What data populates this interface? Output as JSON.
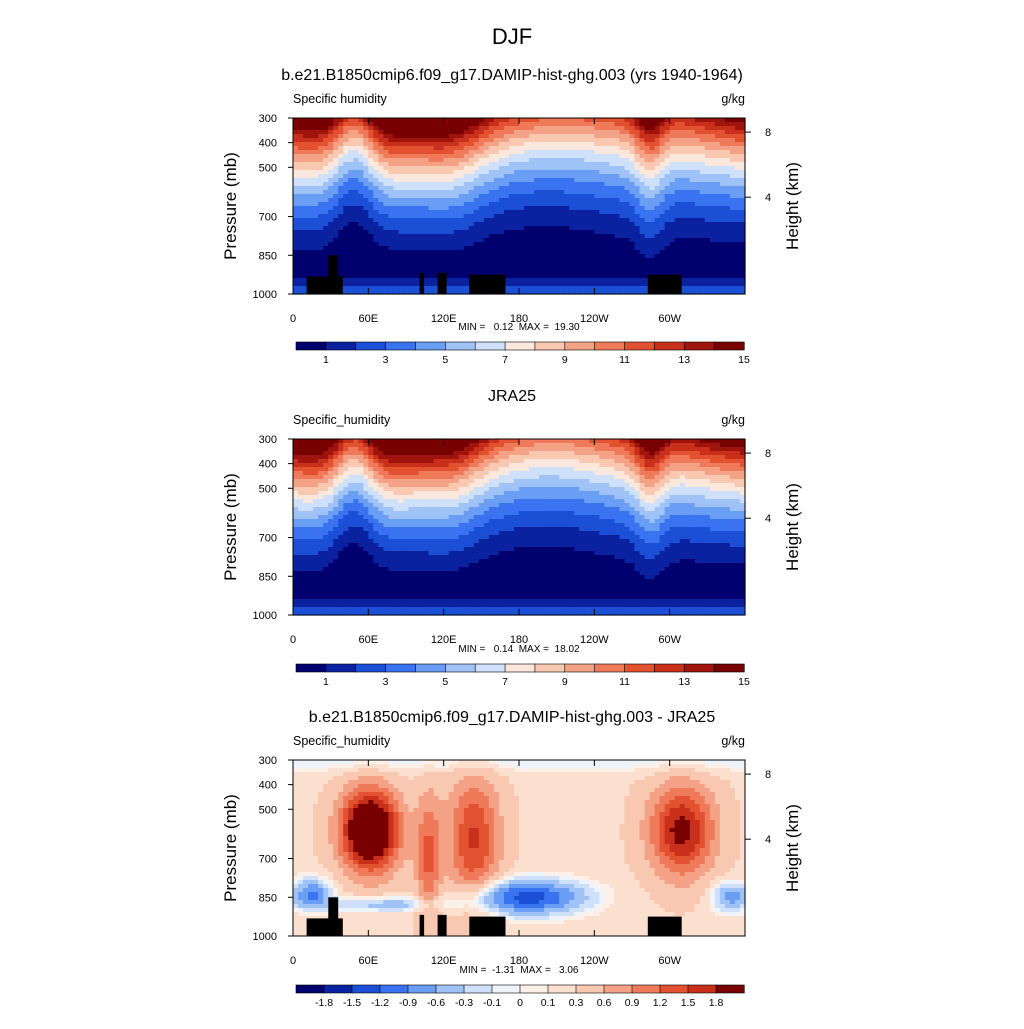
{
  "figure": {
    "title": "DJF"
  },
  "chart_data": [
    {
      "type": "heatmap",
      "title": "b.e21.B1850cmip6.f09_g17.DAMIP-hist-ghg.003 (yrs 1940-1964)",
      "left_label": "Specific humidity",
      "right_label": "g/kg",
      "ylabel": "Pressure (mb)",
      "ylabel_right": "Height (km)",
      "x_ticks": [
        "0",
        "60E",
        "120E",
        "180",
        "120W",
        "60W"
      ],
      "y_ticks": [
        "300",
        "400",
        "500",
        "700",
        "850",
        "1000"
      ],
      "height_ticks": [
        "8",
        "4"
      ],
      "stats": "MIN =   0.12  MAX =  19.30",
      "colorbar_labels": [
        "1",
        "3",
        "5",
        "7",
        "9",
        "11",
        "13",
        "15"
      ],
      "colorbar_colors": [
        "#00006e",
        "#0a22a0",
        "#1a4fd6",
        "#3a73f0",
        "#6a9ef5",
        "#9fc3f7",
        "#cfe0fa",
        "#fbe8dc",
        "#f8c8b0",
        "#f4a286",
        "#ef7a5a",
        "#e35230",
        "#c8301c",
        "#a0140e",
        "#780000"
      ],
      "range": [
        0.12,
        19.3
      ]
    },
    {
      "type": "heatmap",
      "title": "JRA25",
      "left_label": "Specific_humidity",
      "right_label": "g/kg",
      "ylabel": "Pressure (mb)",
      "ylabel_right": "Height (km)",
      "x_ticks": [
        "0",
        "60E",
        "120E",
        "180",
        "120W",
        "60W"
      ],
      "y_ticks": [
        "300",
        "400",
        "500",
        "700",
        "850",
        "1000"
      ],
      "height_ticks": [
        "8",
        "4"
      ],
      "stats": "MIN =   0.14  MAX =  18.02",
      "colorbar_labels": [
        "1",
        "3",
        "5",
        "7",
        "9",
        "11",
        "13",
        "15"
      ],
      "colorbar_colors": [
        "#00006e",
        "#0a22a0",
        "#1a4fd6",
        "#3a73f0",
        "#6a9ef5",
        "#9fc3f7",
        "#cfe0fa",
        "#fbe8dc",
        "#f8c8b0",
        "#f4a286",
        "#ef7a5a",
        "#e35230",
        "#c8301c",
        "#a0140e",
        "#780000"
      ],
      "range": [
        0.14,
        18.02
      ]
    },
    {
      "type": "heatmap",
      "title": "b.e21.B1850cmip6.f09_g17.DAMIP-hist-ghg.003 - JRA25",
      "left_label": "Specific_humidity",
      "right_label": "g/kg",
      "ylabel": "Pressure (mb)",
      "ylabel_right": "Height (km)",
      "x_ticks": [
        "0",
        "60E",
        "120E",
        "180",
        "120W",
        "60W"
      ],
      "y_ticks": [
        "300",
        "400",
        "500",
        "700",
        "850",
        "1000"
      ],
      "height_ticks": [
        "8",
        "4"
      ],
      "stats": "MIN =  -1.31  MAX =   3.06",
      "colorbar_labels": [
        "-1.8",
        "-1.5",
        "-1.2",
        "-0.9",
        "-0.6",
        "-0.3",
        "-0.1",
        "0",
        "0.1",
        "0.3",
        "0.6",
        "0.9",
        "1.2",
        "1.5",
        "1.8"
      ],
      "colorbar_colors": [
        "#00006e",
        "#0a22a0",
        "#1a4fd6",
        "#3a73f0",
        "#6a9ef5",
        "#9fc3f7",
        "#cfe0fa",
        "#eef4fb",
        "#fdf0e8",
        "#fbe0d0",
        "#f8c8b0",
        "#f4a286",
        "#ef7a5a",
        "#e35230",
        "#c8301c",
        "#780000"
      ],
      "range": [
        -1.31,
        3.06
      ]
    }
  ]
}
